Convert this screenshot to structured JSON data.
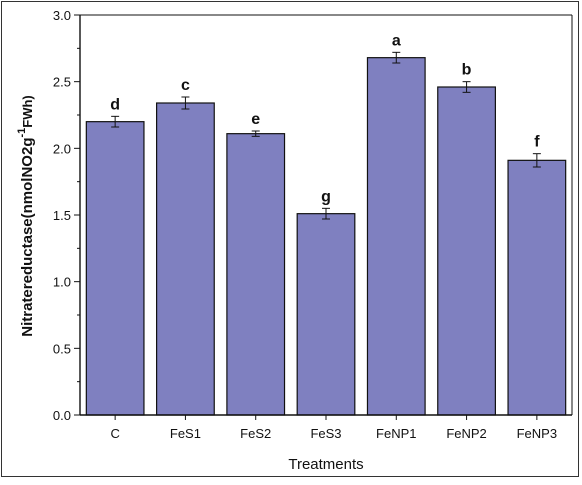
{
  "chart_data": {
    "type": "bar",
    "xlabel": "Treatments",
    "ylabel_main": "Nitratereductase(nmolNO2g",
    "ylabel_sup": "-1",
    "ylabel_tail": "FWh)",
    "categories": [
      "C",
      "FeS1",
      "FeS2",
      "FeS3",
      "FeNP1",
      "FeNP2",
      "FeNP3"
    ],
    "values": [
      2.2,
      2.34,
      2.11,
      1.51,
      2.68,
      2.46,
      1.91
    ],
    "errors": [
      0.04,
      0.045,
      0.02,
      0.04,
      0.04,
      0.04,
      0.05
    ],
    "letters": [
      "d",
      "c",
      "e",
      "g",
      "a",
      "b",
      "f"
    ],
    "ylim": [
      0,
      3.0
    ],
    "yticks": [
      "0.0",
      "0.5",
      "1.0",
      "1.5",
      "2.0",
      "2.5",
      "3.0"
    ],
    "bar_color": "#7f80c0",
    "grid": false
  }
}
